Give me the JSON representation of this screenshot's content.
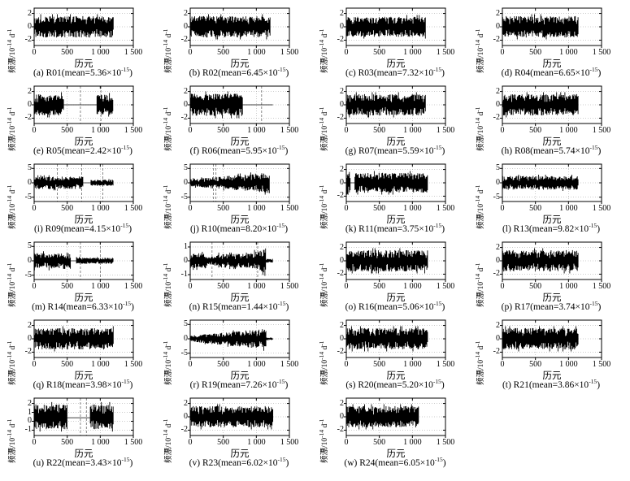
{
  "figure": {
    "xticks": [
      0,
      500,
      1000,
      1500
    ],
    "xtick_labels": [
      "0",
      "500",
      "1 000",
      "1 500"
    ],
    "xlim": [
      0,
      1500
    ],
    "labels": {
      "xlabel": "历元",
      "ylab_pre": "频漂/10",
      "ylab_exp": "-14",
      "ylab_unit": " d",
      "ylab_unit_exp": "-1"
    }
  },
  "chart_data": [
    {
      "type": "line",
      "letter": "a",
      "id": "R01",
      "mean_1e15": 5.36,
      "caption_pre": "(a) R01(mean=5.36×10",
      "caption_exp": "-15",
      "caption_suf": ")",
      "yticks": [
        2,
        0,
        -2
      ],
      "ylim": [
        -2.8,
        2.8
      ],
      "elements": [
        {
          "type": "noise",
          "x0": 5,
          "x1": 1200,
          "a0": 1.6,
          "a1": 1.6
        }
      ],
      "vlines": []
    },
    {
      "type": "line",
      "letter": "b",
      "id": "R02",
      "mean_1e15": 6.45,
      "caption_pre": "(b) R02(mean=6.45×10",
      "caption_exp": "-15",
      "caption_suf": ")",
      "yticks": [
        2,
        0,
        -2
      ],
      "ylim": [
        -2.8,
        2.8
      ],
      "elements": [
        {
          "type": "noise",
          "x0": 5,
          "x1": 1210,
          "a0": 1.6,
          "a1": 1.6
        }
      ],
      "vlines": []
    },
    {
      "type": "line",
      "letter": "c",
      "id": "R03",
      "mean_1e15": 7.32,
      "caption_pre": "(c) R03(mean=7.32×10",
      "caption_exp": "-15",
      "caption_suf": ")",
      "yticks": [
        2,
        0,
        -2
      ],
      "ylim": [
        -2.8,
        2.8
      ],
      "elements": [
        {
          "type": "noise",
          "x0": 5,
          "x1": 1200,
          "a0": 1.5,
          "a1": 1.5
        }
      ],
      "vlines": []
    },
    {
      "type": "line",
      "letter": "d",
      "id": "R04",
      "mean_1e15": 6.65,
      "caption_pre": "(d) R04(mean=6.65×10",
      "caption_exp": "-15",
      "caption_suf": ")",
      "yticks": [
        2,
        0,
        -2
      ],
      "ylim": [
        -2.8,
        2.8
      ],
      "elements": [
        {
          "type": "noise",
          "x0": 5,
          "x1": 1150,
          "a0": 1.6,
          "a1": 1.6
        }
      ],
      "vlines": []
    },
    {
      "type": "line",
      "letter": "e",
      "id": "R05",
      "mean_1e15": 2.42,
      "caption_pre": "(e) R05(mean=2.42×10",
      "caption_exp": "-15",
      "caption_suf": ")",
      "yticks": [
        2,
        0,
        -2
      ],
      "ylim": [
        -2.8,
        2.8
      ],
      "elements": [
        {
          "type": "noise",
          "x0": 5,
          "x1": 450,
          "a0": 1.6,
          "a1": 1.6
        },
        {
          "type": "flat",
          "x0": 450,
          "x1": 950,
          "y": 0
        },
        {
          "type": "noise",
          "x0": 950,
          "x1": 1200,
          "a0": 1.5,
          "a1": 1.5
        }
      ],
      "vlines": [
        700,
        1010
      ]
    },
    {
      "type": "line",
      "letter": "f",
      "id": "R06",
      "mean_1e15": 5.95,
      "caption_pre": "(f) R06(mean=5.95×10",
      "caption_exp": "-15",
      "caption_suf": ")",
      "yticks": [
        2,
        0,
        -2
      ],
      "ylim": [
        -2.8,
        2.8
      ],
      "elements": [
        {
          "type": "noise",
          "x0": 5,
          "x1": 790,
          "a0": 1.7,
          "a1": 1.7
        },
        {
          "type": "flat",
          "x0": 790,
          "x1": 1250,
          "y": 0
        }
      ],
      "vlines": [
        1080
      ]
    },
    {
      "type": "line",
      "letter": "g",
      "id": "R07",
      "mean_1e15": 5.59,
      "caption_pre": "(g) R07(mean=5.59×10",
      "caption_exp": "-15",
      "caption_suf": ")",
      "yticks": [
        2,
        0,
        -2
      ],
      "ylim": [
        -2.8,
        2.8
      ],
      "elements": [
        {
          "type": "noise",
          "x0": 5,
          "x1": 1200,
          "a0": 1.6,
          "a1": 1.6
        }
      ],
      "vlines": []
    },
    {
      "type": "line",
      "letter": "h",
      "id": "R08",
      "mean_1e15": 5.74,
      "caption_pre": "(h) R08(mean=5.74×10",
      "caption_exp": "-15",
      "caption_suf": ")",
      "yticks": [
        2,
        0,
        -2
      ],
      "ylim": [
        -2.8,
        2.8
      ],
      "elements": [
        {
          "type": "noise",
          "x0": 5,
          "x1": 1150,
          "a0": 1.6,
          "a1": 1.6
        }
      ],
      "vlines": []
    },
    {
      "type": "line",
      "letter": "i",
      "id": "R09",
      "mean_1e15": 4.15,
      "caption_pre": "(i) R09(mean=4.15×10",
      "caption_exp": "-15",
      "caption_suf": ")",
      "yticks": [
        5,
        0,
        -5
      ],
      "ylim": [
        -6.5,
        6.5
      ],
      "elements": [
        {
          "type": "noise",
          "x0": 5,
          "x1": 740,
          "a0": 2.2,
          "a1": 2.2
        },
        {
          "type": "flat",
          "x0": 740,
          "x1": 860,
          "y": 0
        },
        {
          "type": "noise",
          "x0": 860,
          "x1": 1200,
          "a0": 1.1,
          "a1": 1.1
        }
      ],
      "vlines": [
        350,
        720,
        1040
      ]
    },
    {
      "type": "line",
      "letter": "j",
      "id": "R10",
      "mean_1e15": 8.2,
      "caption_pre": "(j) R10(mean=8.20×10",
      "caption_exp": "-15",
      "caption_suf": ")",
      "yticks": [
        5,
        0,
        -5
      ],
      "ylim": [
        -6.5,
        6.5
      ],
      "elements": [
        {
          "type": "noise",
          "x0": 5,
          "x1": 1200,
          "a0": 1.3,
          "a1": 3.6
        }
      ],
      "vlines": [
        350,
        390
      ]
    },
    {
      "type": "line",
      "letter": "k",
      "id": "R11",
      "mean_1e15": 3.75,
      "caption_pre": "(k) R11(mean=3.75×10",
      "caption_exp": "-15",
      "caption_suf": ")",
      "yticks": [
        2,
        0,
        -2
      ],
      "ylim": [
        -2.8,
        2.8
      ],
      "elements": [
        {
          "type": "noise",
          "x0": 5,
          "x1": 60,
          "a0": 1.8,
          "a1": 1.8
        },
        {
          "type": "flat",
          "x0": 60,
          "x1": 130,
          "y": 0
        },
        {
          "type": "noise",
          "x0": 130,
          "x1": 1230,
          "a0": 1.5,
          "a1": 1.5
        }
      ],
      "vlines": []
    },
    {
      "type": "line",
      "letter": "l",
      "id": "R13",
      "mean_1e15": 9.82,
      "caption_pre": "(l) R13(mean=9.82×10",
      "caption_exp": "-15",
      "caption_suf": ")",
      "yticks": [
        5,
        0,
        -5
      ],
      "ylim": [
        -6.5,
        6.5
      ],
      "elements": [
        {
          "type": "noise",
          "x0": 5,
          "x1": 1150,
          "a0": 2.4,
          "a1": 2.4
        }
      ],
      "vlines": []
    },
    {
      "type": "line",
      "letter": "m",
      "id": "R14",
      "mean_1e15": 6.33,
      "caption_pre": "(m) R14(mean=6.33×10",
      "caption_exp": "-15",
      "caption_suf": ")",
      "yticks": [
        5,
        0,
        -5
      ],
      "ylim": [
        -6.5,
        6.5
      ],
      "elements": [
        {
          "type": "noise",
          "x0": 5,
          "x1": 550,
          "a0": 2.8,
          "a1": 2.8
        },
        {
          "type": "flat",
          "x0": 550,
          "x1": 640,
          "y": 0
        },
        {
          "type": "noise",
          "x0": 640,
          "x1": 1200,
          "a0": 1.1,
          "a1": 1.1
        }
      ],
      "vlines": [
        700,
        1000
      ]
    },
    {
      "type": "line",
      "letter": "n",
      "id": "R15",
      "mean_1e15": 1.44,
      "caption_pre": "(n) R15(mean=1.44×10",
      "caption_exp": "-15",
      "caption_suf": ")",
      "yticks": [
        1,
        0,
        -1
      ],
      "ylim": [
        -1.35,
        1.35
      ],
      "elements": [
        {
          "type": "noise",
          "x0": 5,
          "x1": 240,
          "a0": 0.55,
          "a1": 0.55
        },
        {
          "type": "noise",
          "x0": 240,
          "x1": 400,
          "a0": 0.3,
          "a1": 0.3
        },
        {
          "type": "noise",
          "x0": 400,
          "x1": 900,
          "a0": 0.5,
          "a1": 0.5
        },
        {
          "type": "noise",
          "x0": 900,
          "x1": 1150,
          "a0": 0.55,
          "a1": 0.95
        },
        {
          "type": "noise",
          "x0": 1150,
          "x1": 1250,
          "a0": 0.15,
          "a1": 0.12
        }
      ],
      "vlines": [
        330,
        1020
      ]
    },
    {
      "type": "line",
      "letter": "o",
      "id": "R16",
      "mean_1e15": 5.06,
      "caption_pre": "(o) R16(mean=5.06×10",
      "caption_exp": "-15",
      "caption_suf": ")",
      "yticks": [
        2,
        0,
        -2
      ],
      "ylim": [
        -2.8,
        2.8
      ],
      "elements": [
        {
          "type": "noise",
          "x0": 5,
          "x1": 1230,
          "a0": 1.6,
          "a1": 1.6
        }
      ],
      "vlines": []
    },
    {
      "type": "line",
      "letter": "p",
      "id": "R17",
      "mean_1e15": 3.74,
      "caption_pre": "(p) R17(mean=3.74×10",
      "caption_exp": "-15",
      "caption_suf": ")",
      "yticks": [
        2,
        0,
        -2
      ],
      "ylim": [
        -2.8,
        2.8
      ],
      "elements": [
        {
          "type": "noise",
          "x0": 5,
          "x1": 1150,
          "a0": 1.6,
          "a1": 1.6
        }
      ],
      "vlines": []
    },
    {
      "type": "line",
      "letter": "q",
      "id": "R18",
      "mean_1e15": 3.98,
      "caption_pre": "(q) R18(mean=3.98×10",
      "caption_exp": "-15",
      "caption_suf": ")",
      "yticks": [
        2,
        0,
        -2
      ],
      "ylim": [
        -2.8,
        2.8
      ],
      "elements": [
        {
          "type": "noise",
          "x0": 5,
          "x1": 1200,
          "a0": 1.6,
          "a1": 1.6
        }
      ],
      "vlines": []
    },
    {
      "type": "line",
      "letter": "r",
      "id": "R19",
      "mean_1e15": 7.26,
      "caption_pre": "(r) R19(mean=7.26×10",
      "caption_exp": "-15",
      "caption_suf": ")",
      "yticks": [
        5,
        0,
        -5
      ],
      "ylim": [
        -6.5,
        6.5
      ],
      "elements": [
        {
          "type": "noise",
          "x0": 5,
          "x1": 1150,
          "a0": 1.1,
          "a1": 3.6
        },
        {
          "type": "noise",
          "x0": 1150,
          "x1": 1250,
          "a0": 0.5,
          "a1": 0.4
        }
      ],
      "vlines": []
    },
    {
      "type": "line",
      "letter": "s",
      "id": "R20",
      "mean_1e15": 5.2,
      "caption_pre": "(s) R20(mean=5.20×10",
      "caption_exp": "-15",
      "caption_suf": ")",
      "yticks": [
        2,
        0,
        -2
      ],
      "ylim": [
        -2.8,
        2.8
      ],
      "elements": [
        {
          "type": "noise",
          "x0": 5,
          "x1": 1230,
          "a0": 1.6,
          "a1": 1.6
        }
      ],
      "vlines": []
    },
    {
      "type": "line",
      "letter": "t",
      "id": "R21",
      "mean_1e15": 3.86,
      "caption_pre": "(t) R21(mean=3.86×10",
      "caption_exp": "-15",
      "caption_suf": ")",
      "yticks": [
        2,
        0,
        -2
      ],
      "ylim": [
        -2.8,
        2.8
      ],
      "elements": [
        {
          "type": "noise",
          "x0": 5,
          "x1": 1150,
          "a0": 1.6,
          "a1": 1.6
        }
      ],
      "vlines": []
    },
    {
      "type": "line",
      "letter": "u",
      "id": "R22",
      "mean_1e15": 3.43,
      "caption_pre": "(u) R22(mean=3.43×10",
      "caption_exp": "-15",
      "caption_suf": ")",
      "yticks": [
        2,
        1,
        0,
        -1
      ],
      "ylim": [
        -1.6,
        2.6
      ],
      "elements": [
        {
          "type": "noise",
          "x0": 5,
          "x1": 500,
          "a0": 1.4,
          "a1": 1.4,
          "off": 0.5
        },
        {
          "type": "flat",
          "x0": 500,
          "x1": 850,
          "y": 0.4
        },
        {
          "type": "noise",
          "x0": 850,
          "x1": 1200,
          "a0": 1.4,
          "a1": 1.4,
          "off": 0.5
        }
      ],
      "vlines": [
        700,
        790
      ]
    },
    {
      "type": "line",
      "letter": "v",
      "id": "R23",
      "mean_1e15": 6.02,
      "caption_pre": "(v) R23(mean=6.02×10",
      "caption_exp": "-15",
      "caption_suf": ")",
      "yticks": [
        2,
        0,
        -2
      ],
      "ylim": [
        -2.8,
        2.8
      ],
      "elements": [
        {
          "type": "noise",
          "x0": 5,
          "x1": 1250,
          "a0": 1.6,
          "a1": 1.6
        }
      ],
      "vlines": []
    },
    {
      "type": "line",
      "letter": "w",
      "id": "R24",
      "mean_1e15": 6.05,
      "caption_pre": "(w) R24(mean=6.05×10",
      "caption_exp": "-15",
      "caption_suf": ")",
      "yticks": [
        2,
        0,
        -2
      ],
      "ylim": [
        -2.8,
        2.8
      ],
      "elements": [
        {
          "type": "noise",
          "x0": 5,
          "x1": 1100,
          "a0": 1.6,
          "a1": 1.6
        }
      ],
      "vlines": []
    }
  ]
}
